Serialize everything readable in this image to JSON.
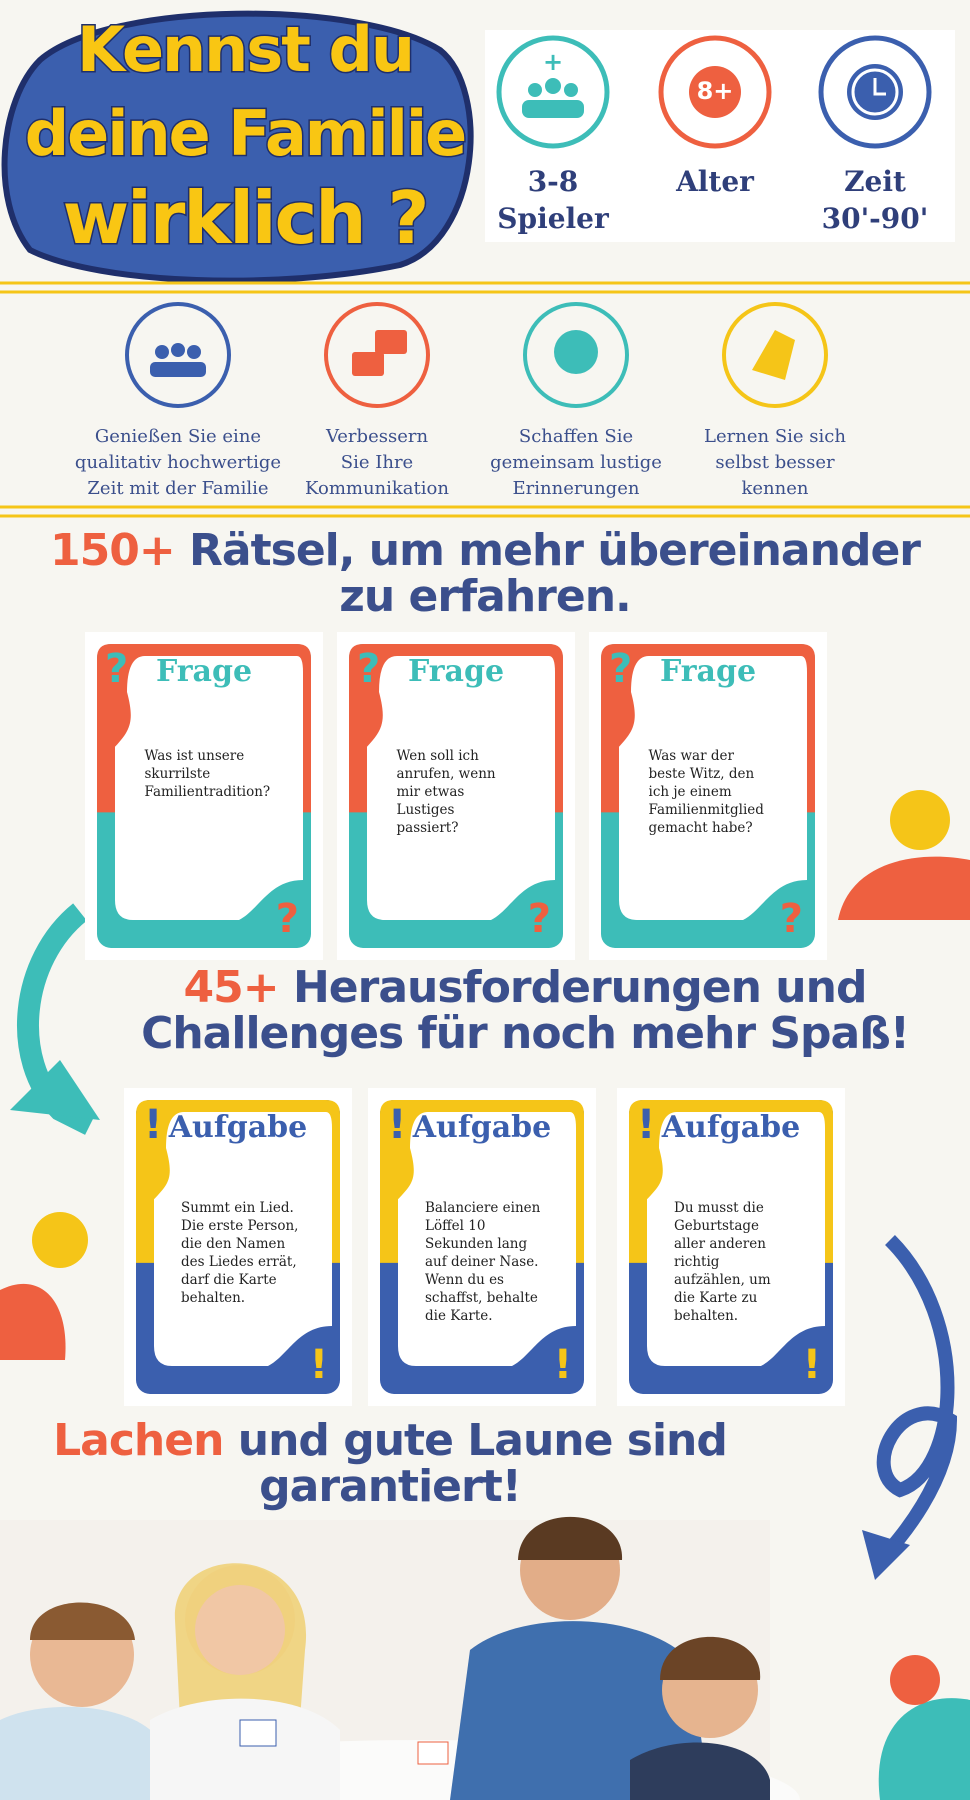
{
  "title": {
    "lines": [
      "Kennst du",
      "deine Familie",
      "wirklich ?"
    ]
  },
  "stats": [
    {
      "icon": "+",
      "lines": [
        "3-8",
        "Spieler"
      ]
    },
    {
      "icon": "8+",
      "lines": [
        "Alter"
      ]
    },
    {
      "icon": "",
      "lines": [
        "Zeit",
        "30'-90'"
      ]
    }
  ],
  "benefits": [
    {
      "lines": [
        "Genießen Sie eine",
        "qualitativ hochwertige",
        "Zeit mit der Familie"
      ]
    },
    {
      "lines": [
        "Verbessern",
        "Sie Ihre",
        "Kommunikation"
      ]
    },
    {
      "lines": [
        "Schaffen Sie",
        "gemeinsam lustige",
        "Erinnerungen"
      ]
    },
    {
      "lines": [
        "Lernen Sie sich",
        "selbst besser",
        "kennen"
      ]
    }
  ],
  "questions": {
    "highlight": "150+",
    "heading": [
      "Rätsel, um mehr übereinander",
      "zu erfahren."
    ],
    "label": "Frage",
    "mark": "?",
    "cards": [
      "Was ist unsere skurrilste Familientradition?",
      "Wen soll ich anrufen, wenn mir etwas Lustiges passiert?",
      "Was war der beste Witz, den ich je einem Familienmitglied gemacht habe?"
    ]
  },
  "tasks": {
    "highlight": "45+",
    "heading": [
      "Herausforderungen und",
      "Challenges für noch mehr Spaß!"
    ],
    "label": "Aufgabe",
    "mark": "!",
    "cards": [
      "Summt ein Lied. Die erste Person, die den Namen des Liedes errät, darf die Karte behalten.",
      "Balanciere einen Löffel 10 Sekunden lang auf deiner Nase. Wenn du es schaffst, behalte die Karte.",
      "Du musst die Geburtstage aller anderen richtig aufzählen, um die Karte zu behalten."
    ]
  },
  "closing": {
    "highlight": "Lachen",
    "lines": [
      "und gute Laune sind",
      "garantiert!"
    ]
  }
}
